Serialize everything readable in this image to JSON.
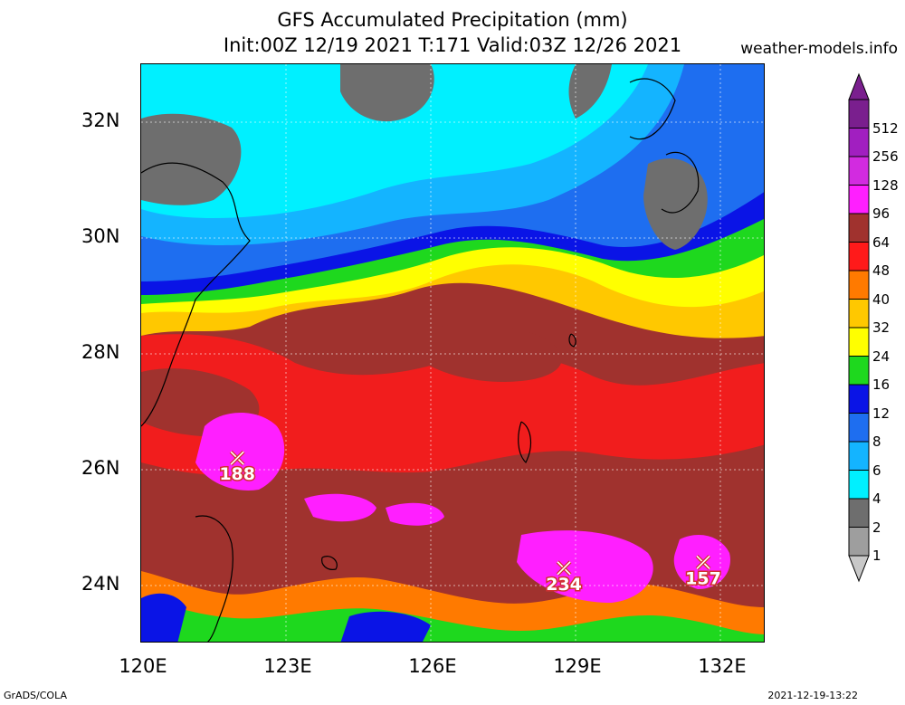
{
  "header": {
    "title": "GFS Accumulated Precipitation (mm)",
    "subtitle": "Init:00Z 12/19 2021 T:171 Valid:03Z 12/26 2021",
    "site": "weather-models.info"
  },
  "axes": {
    "lat_labels": [
      "32N",
      "30N",
      "28N",
      "26N",
      "24N"
    ],
    "lon_labels": [
      "120E",
      "123E",
      "126E",
      "129E",
      "132E"
    ]
  },
  "legend": {
    "levels": [
      {
        "label": "512",
        "color": "#7a1f8e"
      },
      {
        "label": "256",
        "color": "#a11fc0"
      },
      {
        "label": "128",
        "color": "#d22be0"
      },
      {
        "label": "96",
        "color": "#ff1fff"
      },
      {
        "label": "64",
        "color": "#a0322e"
      },
      {
        "label": "48",
        "color": "#ff1a1a"
      },
      {
        "label": "40",
        "color": "#ff7a00"
      },
      {
        "label": "32",
        "color": "#ffc800"
      },
      {
        "label": "24",
        "color": "#ffff00"
      },
      {
        "label": "16",
        "color": "#1ed81e"
      },
      {
        "label": "12",
        "color": "#0a14e6"
      },
      {
        "label": "8",
        "color": "#1e6ef0"
      },
      {
        "label": "6",
        "color": "#14b4ff"
      },
      {
        "label": "4",
        "color": "#00f0ff"
      },
      {
        "label": "2",
        "color": "#6e6e6e"
      },
      {
        "label": "1",
        "color": "#9e9e9e"
      }
    ],
    "below_color": "#c8c8c8"
  },
  "maxima": [
    {
      "value": "188",
      "lon": 122.0,
      "lat": 26.2
    },
    {
      "value": "234",
      "lon": 128.8,
      "lat": 24.3
    },
    {
      "value": "157",
      "lon": 131.7,
      "lat": 24.4
    }
  ],
  "footer": {
    "left": "GrADS/COLA",
    "right": "2021-12-19-13:22"
  }
}
